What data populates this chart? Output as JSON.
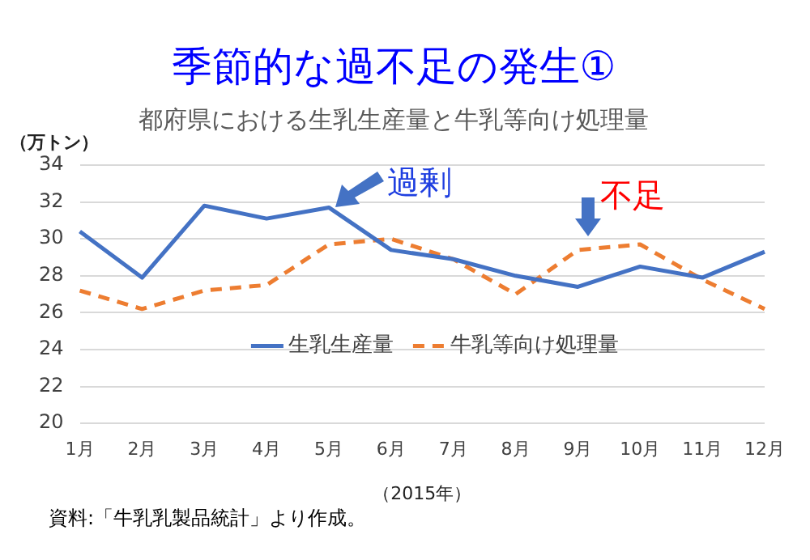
{
  "chart_data": {
    "type": "line",
    "title": "季節的な過不足の発生①",
    "subtitle": "都府県における生乳生産量と牛乳等向け処理量",
    "ylabel": "（万トン）",
    "xlabel": "（2015年）",
    "categories": [
      "1月",
      "2月",
      "3月",
      "4月",
      "5月",
      "6月",
      "7月",
      "8月",
      "9月",
      "10月",
      "11月",
      "12月"
    ],
    "series": [
      {
        "name": "生乳生産量",
        "color": "#4472c4",
        "line_style": "solid",
        "values": [
          30.4,
          27.9,
          31.8,
          31.1,
          31.7,
          29.4,
          28.9,
          28.0,
          27.4,
          28.5,
          27.9,
          29.3
        ]
      },
      {
        "name": "牛乳等向け処理量",
        "color": "#ed7d31",
        "line_style": "dashed",
        "values": [
          27.2,
          26.2,
          27.2,
          27.5,
          29.7,
          30.0,
          28.9,
          27.0,
          29.4,
          29.7,
          27.8,
          26.2
        ]
      }
    ],
    "ylim": [
      20,
      34
    ],
    "yticks": [
      20,
      22,
      24,
      26,
      28,
      30,
      32,
      34
    ],
    "grid": "y",
    "legend": "center",
    "marker": "none",
    "annotations": [
      {
        "text": "過剰",
        "x": "5月",
        "y": 31.7
      },
      {
        "text": "不足",
        "x": "9月",
        "y": 29.4
      },
      "資料:「牛乳乳製品統計」より作成。"
    ]
  }
}
